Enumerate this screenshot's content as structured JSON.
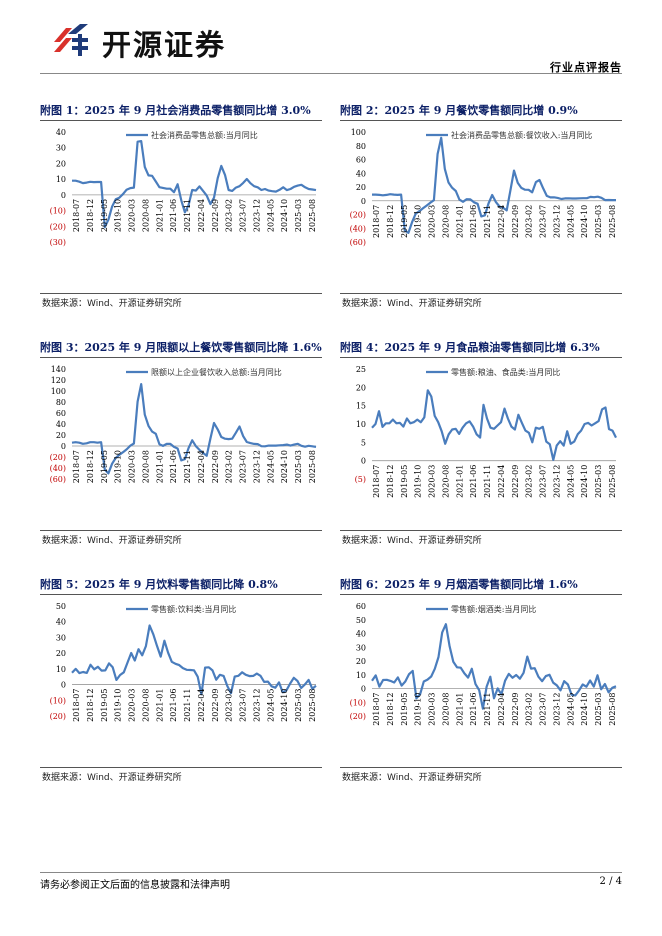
{
  "header": {
    "logo_text": "开源证券",
    "report_type": "行业点评报告"
  },
  "brand_colors": {
    "logo_red": "#d9312b",
    "logo_blue": "#1f3b7a",
    "series_line": "#4a7dbd",
    "negative_tick": "#c00000",
    "title": "#0b1f66"
  },
  "footer": {
    "disclaimer": "请务必参阅正文后面的信息披露和法律声明",
    "page": "2 / 4"
  },
  "figures": [
    {
      "title": "附图 1：2025 年 9 月社会消费品零售额同比增 3.0%",
      "source": "数据来源：Wind、开源证券研究所"
    },
    {
      "title": "附图 2：2025 年 9 月餐饮零售额同比增 0.9%",
      "source": "数据来源：Wind、开源证券研究所"
    },
    {
      "title": "附图 3：2025 年 9 月限额以上餐饮零售额同比降 1.6%",
      "source": "数据来源：Wind、开源证券研究所"
    },
    {
      "title": "附图 4：2025 年 9 月食品粮油零售额同比增 6.3%",
      "source": "数据来源：Wind、开源证券研究所"
    },
    {
      "title": "附图 5：2025 年 9 月饮料零售额同比降 0.8%",
      "source": "数据来源：Wind、开源证券研究所"
    },
    {
      "title": "附图 6：2025 年 9 月烟酒零售额同比增 1.6%",
      "source": "数据来源：Wind、开源证券研究所"
    }
  ],
  "chart_data": [
    {
      "type": "line",
      "title": "附图 1：2025 年 9 月社会消费品零售额同比增 3.0%",
      "legend": "社会消费品零售总额:当月同比",
      "legend_position": "top",
      "ylim": [
        -30,
        40
      ],
      "yticks": [
        "40",
        "30",
        "20",
        "10",
        "0",
        "(10)",
        "(20)",
        "(30)"
      ],
      "ytick_values": [
        40,
        30,
        20,
        10,
        0,
        -10,
        -20,
        -30
      ],
      "xticks": [
        "2018-07",
        "2018-12",
        "2019-05",
        "2019-10",
        "2020-03",
        "2020-08",
        "2021-01",
        "2021-06",
        "2021-11",
        "2022-04",
        "2022-09",
        "2023-02",
        "2023-07",
        "2023-12",
        "2024-05",
        "2024-10",
        "2025-03",
        "2025-08"
      ],
      "values": [
        9.0,
        9.0,
        8.4,
        7.5,
        7.8,
        8.3,
        8.1,
        8.2,
        8.2,
        -20.5,
        -15.8,
        -7.5,
        -2.8,
        -1.8,
        0.5,
        3.3,
        4.3,
        4.6,
        33.8,
        34.2,
        17.7,
        12.4,
        12.1,
        8.5,
        4.9,
        4.4,
        3.9,
        3.9,
        1.7,
        6.7,
        -3.5,
        -11.1,
        -6.7,
        3.1,
        2.7,
        5.4,
        2.5,
        -0.5,
        -5.9,
        -1.8,
        10.6,
        18.4,
        12.7,
        3.1,
        2.5,
        4.6,
        5.5,
        7.6,
        10.1,
        7.4,
        5.5,
        4.8,
        3.1,
        3.7,
        2.7,
        2.3,
        2.1,
        3.2,
        4.8,
        3.0,
        3.7,
        5.1,
        5.9,
        6.4,
        4.8,
        3.7,
        3.4,
        3.0
      ],
      "xlabel": "",
      "ylabel": ""
    },
    {
      "type": "line",
      "title": "附图 2：2025 年 9 月餐饮零售额同比增 0.9%",
      "legend": "社会消费品零售总额:餐饮收入:当月同比",
      "legend_position": "top",
      "ylim": [
        -60,
        100
      ],
      "yticks": [
        "100",
        "80",
        "60",
        "40",
        "20",
        "0",
        "(20)",
        "(40)",
        "(60)"
      ],
      "ytick_values": [
        100,
        80,
        60,
        40,
        20,
        0,
        -20,
        -40,
        -60
      ],
      "xticks": [
        "2018-07",
        "2018-12",
        "2019-05",
        "2019-10",
        "2020-03",
        "2020-08",
        "2021-01",
        "2021-06",
        "2021-11",
        "2022-04",
        "2022-09",
        "2023-02",
        "2023-07",
        "2023-12",
        "2024-05",
        "2024-10",
        "2025-03",
        "2025-08"
      ],
      "values": [
        9.0,
        9.0,
        8.5,
        8.0,
        8.5,
        9.5,
        9.0,
        8.5,
        9.0,
        -43.1,
        -46.8,
        -31.1,
        -18.9,
        -15.2,
        -11.0,
        -7.0,
        -2.9,
        0.8,
        68.0,
        91.6,
        46.4,
        26.6,
        19.0,
        14.2,
        1.7,
        -1.6,
        2.3,
        2.0,
        -2.2,
        -4.5,
        -22.7,
        -21.1,
        -4.0,
        8.4,
        -1.7,
        -8.4,
        -10.1,
        -14.1,
        15.1,
        43.8,
        26.3,
        18.7,
        16.1,
        15.9,
        12.3,
        27.1,
        30.2,
        17.9,
        7.0,
        4.9,
        5.0,
        4.2,
        2.5,
        3.4,
        3.6,
        3.2,
        3.2,
        3.5,
        3.7,
        3.7,
        5.6,
        5.2,
        5.9,
        4.3,
        0.9,
        1.1,
        1.0,
        0.9
      ],
      "xlabel": "",
      "ylabel": ""
    },
    {
      "type": "line",
      "title": "附图 3：2025 年 9 月限额以上餐饮零售额同比降 1.6%",
      "legend": "限额以上企业餐饮收入总额:当月同比",
      "legend_position": "top",
      "ylim": [
        -60,
        140
      ],
      "yticks": [
        "140",
        "120",
        "100",
        "80",
        "60",
        "40",
        "20",
        "0",
        "(20)",
        "(40)",
        "(60)"
      ],
      "ytick_values": [
        140,
        120,
        100,
        80,
        60,
        40,
        20,
        0,
        -20,
        -40,
        -60
      ],
      "xticks": [
        "2018-07",
        "2018-12",
        "2019-05",
        "2019-10",
        "2020-03",
        "2020-08",
        "2021-01",
        "2021-06",
        "2021-11",
        "2022-04",
        "2022-09",
        "2023-02",
        "2023-07",
        "2023-12",
        "2024-05",
        "2024-10",
        "2025-03",
        "2025-08"
      ],
      "values": [
        6.0,
        7.0,
        6.0,
        4.0,
        5.0,
        7.0,
        7.0,
        6.0,
        7.0,
        -42.9,
        -49.8,
        -32.2,
        -21.9,
        -16.1,
        -11.2,
        -6.1,
        0.5,
        4.5,
        80.8,
        112.5,
        57.0,
        36.6,
        26.1,
        22.2,
        3.2,
        0.2,
        3.8,
        3.8,
        -1.6,
        -4.6,
        -26.2,
        -23.9,
        -4.0,
        10.4,
        -0.2,
        -7.1,
        -12.8,
        -17.8,
        13.4,
        41.8,
        30.1,
        16.3,
        13.2,
        12.6,
        13.3,
        24.1,
        35.5,
        17.8,
        7.3,
        5.2,
        3.8,
        3.5,
        -0.3,
        -0.6,
        0.8,
        0.7,
        0.7,
        1.2,
        1.6,
        2.6,
        0.8,
        2.6,
        4.0,
        0.3,
        -1.3,
        0.3,
        -0.6,
        -1.6
      ],
      "xlabel": "",
      "ylabel": ""
    },
    {
      "type": "line",
      "title": "附图 4：2025 年 9 月食品粮油零售额同比增 6.3%",
      "legend": "零售额:粮油、食品类:当月同比",
      "legend_position": "top",
      "ylim": [
        -5,
        25
      ],
      "yticks": [
        "25",
        "20",
        "15",
        "10",
        "5",
        "0",
        "(5)"
      ],
      "ytick_values": [
        25,
        20,
        15,
        10,
        5,
        0,
        -5
      ],
      "xticks": [
        "2018-07",
        "2018-12",
        "2019-05",
        "2019-10",
        "2020-03",
        "2020-08",
        "2021-01",
        "2021-06",
        "2021-11",
        "2022-04",
        "2022-09",
        "2023-02",
        "2023-07",
        "2023-12",
        "2024-05",
        "2024-10",
        "2025-03",
        "2025-08"
      ],
      "values": [
        9.0,
        10.0,
        13.5,
        9.2,
        10.2,
        10.2,
        11.2,
        10.2,
        10.3,
        9.3,
        11.5,
        10.2,
        10.5,
        11.2,
        10.5,
        11.8,
        19.2,
        17.5,
        12.2,
        10.5,
        8.0,
        4.6,
        7.2,
        8.5,
        8.7,
        7.3,
        9.0,
        10.2,
        10.7,
        9.3,
        7.2,
        6.3,
        15.2,
        11.5,
        9.0,
        8.7,
        9.6,
        10.5,
        14.2,
        11.5,
        9.3,
        8.5,
        12.5,
        10.3,
        8.2,
        7.6,
        5.0,
        9.0,
        8.7,
        9.2,
        5.2,
        4.5,
        0.2,
        4.1,
        5.3,
        4.1,
        8.0,
        4.6,
        5.2,
        7.2,
        8.2,
        10.0,
        10.3,
        9.6,
        10.2,
        10.8,
        14.0,
        14.5,
        8.6,
        8.2,
        6.3
      ],
      "xlabel": "",
      "ylabel": ""
    },
    {
      "type": "line",
      "title": "附图 5：2025 年 9 月饮料零售额同比降 0.8%",
      "legend": "零售额:饮料类:当月同比",
      "legend_position": "top",
      "ylim": [
        -20,
        50
      ],
      "yticks": [
        "50",
        "40",
        "30",
        "20",
        "10",
        "0",
        "(10)",
        "(20)"
      ],
      "ytick_values": [
        50,
        40,
        30,
        20,
        10,
        0,
        -10,
        -20
      ],
      "xticks": [
        "2018-07",
        "2018-12",
        "2019-05",
        "2019-10",
        "2020-03",
        "2020-08",
        "2021-01",
        "2021-06",
        "2021-11",
        "2022-04",
        "2022-09",
        "2023-02",
        "2023-07",
        "2023-12",
        "2024-05",
        "2024-10",
        "2025-03",
        "2025-08"
      ],
      "values": [
        7.5,
        10.0,
        7.3,
        8.0,
        7.4,
        12.6,
        9.7,
        11.3,
        8.9,
        9.0,
        13.5,
        11.0,
        3.0,
        6.1,
        7.8,
        14.0,
        20.1,
        15.3,
        22.5,
        18.6,
        24.5,
        37.6,
        32.0,
        24.6,
        17.8,
        27.9,
        20.3,
        14.5,
        13.2,
        12.4,
        10.5,
        9.4,
        9.3,
        9.1,
        5.0,
        -6.2,
        10.8,
        11.0,
        9.0,
        3.1,
        6.2,
        5.5,
        -0.9,
        -5.5,
        5.1,
        5.6,
        7.8,
        6.2,
        5.4,
        5.5,
        7.0,
        5.6,
        1.7,
        1.9,
        -1.1,
        -2.0,
        1.4,
        -4.9,
        -3.7,
        0.6,
        4.3,
        2.3,
        -2.2,
        0.1,
        3.0,
        -2.6,
        -0.8
      ],
      "xlabel": "",
      "ylabel": ""
    },
    {
      "type": "line",
      "title": "附图 6：2025 年 9 月烟酒零售额同比增 1.6%",
      "legend": "零售额:烟酒类:当月同比",
      "legend_position": "top",
      "ylim": [
        -20,
        60
      ],
      "yticks": [
        "60",
        "50",
        "40",
        "30",
        "20",
        "10",
        "0",
        "(10)",
        "(20)"
      ],
      "ytick_values": [
        60,
        50,
        40,
        30,
        20,
        10,
        0,
        -10,
        -20
      ],
      "xticks": [
        "2018-07",
        "2018-12",
        "2019-05",
        "2019-10",
        "2020-03",
        "2020-08",
        "2021-01",
        "2021-06",
        "2021-11",
        "2022-04",
        "2022-09",
        "2023-02",
        "2023-07",
        "2023-12",
        "2024-05",
        "2024-10",
        "2025-03",
        "2025-08"
      ],
      "values": [
        5.6,
        9.5,
        1.4,
        6.2,
        6.3,
        5.5,
        4.4,
        8.1,
        2.1,
        5.1,
        10.4,
        12.8,
        -7.1,
        -4.2,
        5.1,
        6.5,
        8.7,
        14.3,
        22.9,
        40.8,
        46.8,
        30.7,
        19.4,
        15.4,
        15.1,
        11.0,
        7.9,
        14.3,
        3.2,
        -1.2,
        -14.7,
        1.2,
        8.6,
        -7.1,
        0.1,
        -4.3,
        5.7,
        10.6,
        7.8,
        9.8,
        7.1,
        11.4,
        23.2,
        14.5,
        14.8,
        8.6,
        5.3,
        9.0,
        10.0,
        4.2,
        2.3,
        -1.4,
        5.3,
        2.9,
        -4.6,
        -5.0,
        -1.5,
        2.9,
        1.3,
        5.8,
        1.4,
        9.6,
        -0.6,
        3.3,
        -2.8,
        0.5,
        1.6
      ],
      "xlabel": "",
      "ylabel": ""
    }
  ]
}
